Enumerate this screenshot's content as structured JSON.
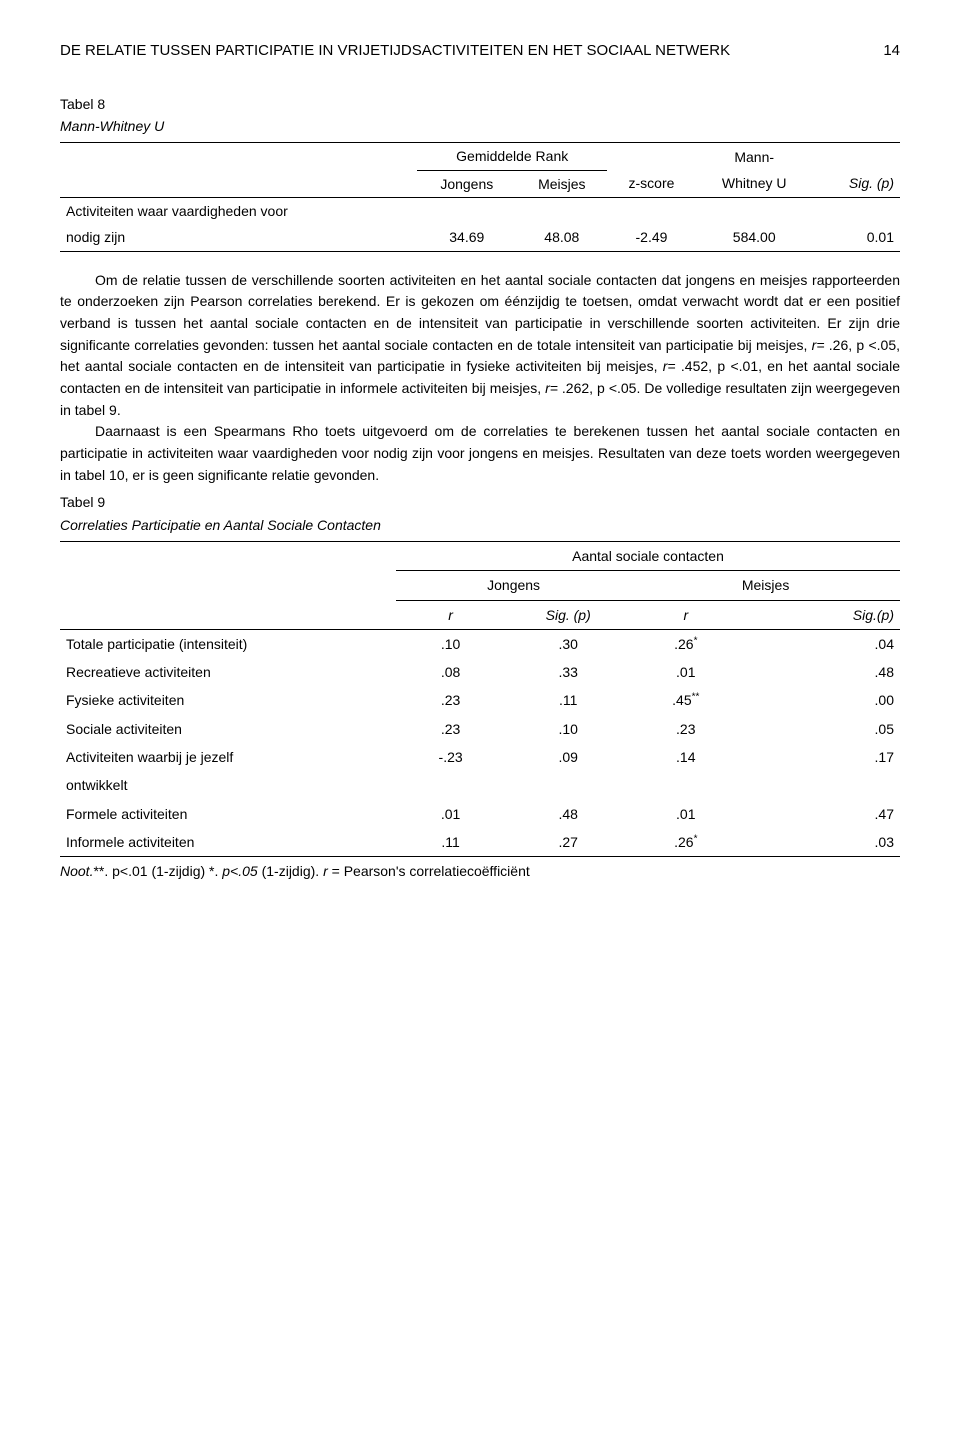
{
  "header": {
    "title": "DE RELATIE TUSSEN PARTICIPATIE IN VRIJETIJDSACTIVITEITEN EN HET SOCIAAL NETWERK",
    "page": "14"
  },
  "table8": {
    "label": "Tabel 8",
    "title": "Mann-Whitney U",
    "group_header": "Gemiddelde Rank",
    "cols": {
      "jongens": "Jongens",
      "meisjes": "Meisjes",
      "z": "z-score",
      "mwu_top": "Mann-",
      "mwu_bot": "Whitney U",
      "sig": "Sig. (p)"
    },
    "row_label_1": "Activiteiten waar vaardigheden voor",
    "row_label_2": "nodig zijn",
    "vals": {
      "jongens": "34.69",
      "meisjes": "48.08",
      "z": "-2.49",
      "mwu": "584.00",
      "sig": "0.01"
    }
  },
  "body": {
    "p1a": "Om de relatie tussen de verschillende soorten activiteiten en het aantal sociale contacten dat jongens en meisjes rapporteerden te onderzoeken zijn Pearson correlaties berekend. Er is gekozen om éénzijdig te toetsen, omdat verwacht wordt dat er een positief verband is tussen het aantal sociale contacten en de intensiteit van participatie in verschillende soorten activiteiten. Er zijn drie significante correlaties gevonden: tussen het aantal sociale contacten en de totale intensiteit van participatie bij meisjes, ",
    "p1b": "r= ",
    "p1c": ".26, p <.05, het aantal sociale contacten en de intensiteit van participatie in fysieke activiteiten bij meisjes, ",
    "p1d": "r= ",
    "p1e": ".452, p <.01, en het aantal sociale contacten en de intensiteit van participatie in informele activiteiten bij meisjes, ",
    "p1f": "r= ",
    "p1g": ".262, p <.05. De volledige resultaten zijn weergegeven in tabel 9.",
    "p2": "Daarnaast is een Spearmans Rho toets uitgevoerd om de correlaties te berekenen tussen het aantal sociale contacten en participatie in activiteiten waar vaardigheden voor nodig zijn voor jongens en meisjes. Resultaten van deze toets worden weergegeven in tabel 10, er is geen significante relatie gevonden."
  },
  "table9": {
    "label": "Tabel 9",
    "title": "Correlaties Participatie en Aantal Sociale Contacten",
    "super_header": "Aantal sociale contacten",
    "jongens": "Jongens",
    "meisjes": "Meisjes",
    "r": "r",
    "sig_j": "Sig. (p)",
    "sig_m": "Sig.(p)",
    "rows": [
      {
        "label": "Totale participatie (intensiteit)",
        "indent": false,
        "rj": ".10",
        "sj": ".30",
        "rm": ".26",
        "rm_sup": "*",
        "sm": ".04"
      },
      {
        "label": "Recreatieve activiteiten",
        "indent": true,
        "rj": ".08",
        "sj": ".33",
        "rm": ".01",
        "rm_sup": "",
        "sm": ".48"
      },
      {
        "label": "Fysieke activiteiten",
        "indent": true,
        "rj": ".23",
        "sj": ".11",
        "rm": ".45",
        "rm_sup": "**",
        "sm": ".00"
      },
      {
        "label": "Sociale activiteiten",
        "indent": true,
        "rj": ".23",
        "sj": ".10",
        "rm": ".23",
        "rm_sup": "",
        "sm": ".05"
      },
      {
        "label": "Activiteiten waarbij je jezelf",
        "indent": true,
        "rj": "-.23",
        "sj": ".09",
        "rm": ".14",
        "rm_sup": "",
        "sm": ".17"
      },
      {
        "label": "ontwikkelt",
        "indent": true,
        "rj": "",
        "sj": "",
        "rm": "",
        "rm_sup": "",
        "sm": ""
      },
      {
        "label": "Formele activiteiten",
        "indent": true,
        "rj": ".01",
        "sj": ".48",
        "rm": ".01",
        "rm_sup": "",
        "sm": ".47"
      },
      {
        "label": "Informele activiteiten",
        "indent": false,
        "rj": ".11",
        "sj": ".27",
        "rm": ".26",
        "rm_sup": "*",
        "sm": ".03"
      }
    ],
    "noot_a": "Noot.",
    "noot_b": "**. p<.01 ",
    "noot_c": "(1-zijdig) *. ",
    "noot_d": "p<.05 ",
    "noot_e": "(1-zijdig). ",
    "noot_f": "r",
    "noot_g": " = Pearson's correlatiecoëfficiënt"
  }
}
